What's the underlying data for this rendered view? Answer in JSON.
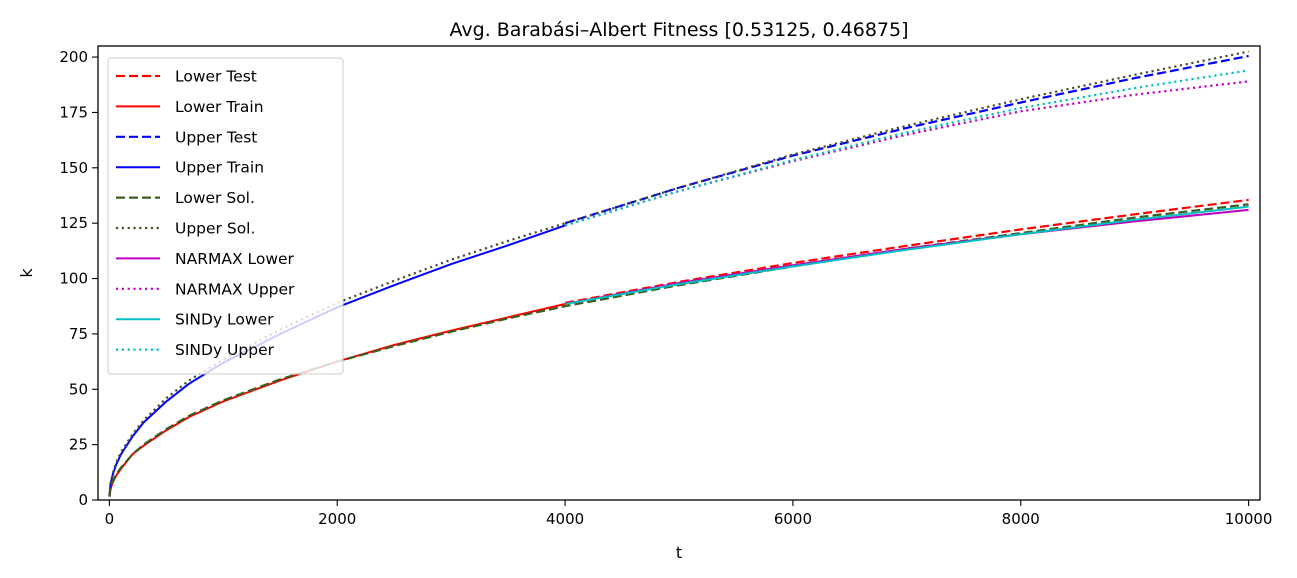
{
  "chart_data": {
    "type": "line",
    "title": "Avg. Barabási–Albert Fitness [0.53125, 0.46875]",
    "xlabel": "t",
    "ylabel": "k",
    "xlim": [
      -100,
      10100
    ],
    "ylim": [
      0,
      205
    ],
    "xticks": [
      0,
      2000,
      4000,
      6000,
      8000,
      10000
    ],
    "yticks": [
      0,
      25,
      50,
      75,
      100,
      125,
      150,
      175,
      200
    ],
    "grid": false,
    "legend_position": "upper-left",
    "series": [
      {
        "name": "Lower Test",
        "color": "#ff0000",
        "dash": "dashed",
        "width": 2.2,
        "x": [
          4000,
          5000,
          6000,
          7000,
          8000,
          9000,
          10000
        ],
        "y": [
          89,
          98.5,
          107,
          114.8,
          122.2,
          129,
          135.5
        ]
      },
      {
        "name": "Lower Train",
        "color": "#ff0000",
        "dash": "solid",
        "width": 2,
        "x": [
          0,
          10,
          30,
          60,
          100,
          200,
          300,
          500,
          700,
          1000,
          1500,
          2000,
          2500,
          3000,
          3500,
          4000
        ],
        "y": [
          1.5,
          5,
          8,
          11,
          14,
          20.5,
          24.5,
          31.5,
          37.5,
          44.5,
          54,
          62.5,
          70,
          76.5,
          82.5,
          88.5
        ]
      },
      {
        "name": "Upper Test",
        "color": "#0000ff",
        "dash": "dashed",
        "width": 2.2,
        "x": [
          4000,
          5000,
          6000,
          7000,
          8000,
          9000,
          10000
        ],
        "y": [
          125,
          141,
          155.5,
          168,
          179.5,
          190.5,
          200.5
        ]
      },
      {
        "name": "Upper Train",
        "color": "#0000ff",
        "dash": "solid",
        "width": 2,
        "x": [
          0,
          10,
          30,
          60,
          100,
          200,
          300,
          500,
          700,
          1000,
          1500,
          2000,
          2500,
          3000,
          3500,
          4000
        ],
        "y": [
          2,
          7,
          11.5,
          16,
          20.5,
          28.5,
          35,
          44.5,
          52.5,
          62,
          75,
          87,
          97,
          106.5,
          115,
          124
        ]
      },
      {
        "name": "Lower Sol.",
        "color": "#3a5e1e",
        "dash": "dashed",
        "width": 2.2,
        "x": [
          0,
          10,
          30,
          60,
          100,
          200,
          300,
          500,
          700,
          1000,
          1500,
          2000,
          2500,
          3000,
          3500,
          4000,
          5000,
          6000,
          7000,
          8000,
          9000,
          10000
        ],
        "y": [
          1.5,
          5,
          8.5,
          11.5,
          14.5,
          20.5,
          25,
          32,
          38,
          45,
          54.5,
          62.5,
          69.5,
          76,
          82,
          87.5,
          97,
          105.5,
          113.5,
          120.5,
          127.5,
          133.5
        ]
      },
      {
        "name": "Upper Sol.",
        "color": "#4d4d2e",
        "dash": "dotted",
        "width": 2.2,
        "x": [
          0,
          10,
          30,
          60,
          100,
          200,
          300,
          500,
          700,
          1000,
          1500,
          2000,
          2500,
          3000,
          3500,
          4000,
          5000,
          6000,
          7000,
          8000,
          9000,
          10000
        ],
        "y": [
          2,
          7.5,
          12,
          17,
          21.5,
          29.5,
          36,
          46,
          54,
          63.5,
          77,
          89,
          99,
          108.5,
          117,
          125,
          141,
          156,
          169,
          181,
          192,
          202.5
        ]
      },
      {
        "name": "NARMAX Lower",
        "color": "#bf00bf",
        "dash": "solid",
        "width": 2,
        "x": [
          4000,
          5000,
          6000,
          7000,
          8000,
          9000,
          10000
        ],
        "y": [
          88.5,
          98,
          106,
          113.5,
          120,
          125.8,
          131
        ]
      },
      {
        "name": "NARMAX Upper",
        "color": "#bf00bf",
        "dash": "dotted",
        "width": 2.2,
        "x": [
          4000,
          5000,
          6000,
          7000,
          8000,
          9000,
          10000
        ],
        "y": [
          124,
          139.5,
          153,
          165,
          175.5,
          183,
          189
        ]
      },
      {
        "name": "SINDy Lower",
        "color": "#00bfbf",
        "dash": "solid",
        "width": 2,
        "x": [
          4000,
          5000,
          6000,
          7000,
          8000,
          9000,
          10000
        ],
        "y": [
          88.5,
          97.5,
          105.5,
          113,
          120,
          126.5,
          132.5
        ]
      },
      {
        "name": "SINDy Upper",
        "color": "#00bfbf",
        "dash": "dotted",
        "width": 2.2,
        "x": [
          4000,
          5000,
          6000,
          7000,
          8000,
          9000,
          10000
        ],
        "y": [
          124,
          139.5,
          153.5,
          166,
          177,
          186,
          194
        ]
      }
    ]
  }
}
